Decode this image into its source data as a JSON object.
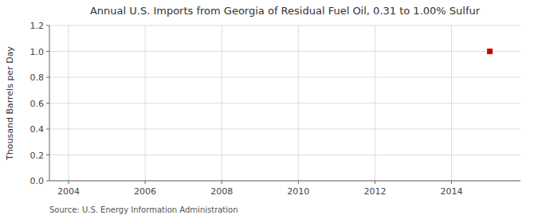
{
  "chart_data": {
    "type": "scatter",
    "title": "Annual U.S. Imports from Georgia of Residual Fuel Oil, 0.31 to 1.00% Sulfur",
    "ylabel": "Thousand Barrels per Day",
    "source": "Source: U.S. Energy Information Administration",
    "x": [
      2015
    ],
    "values": [
      1.0
    ],
    "color": "#cc0000",
    "marker": "square",
    "xlim": [
      2003.5,
      2015.8
    ],
    "ylim": [
      0.0,
      1.2
    ],
    "xticks": [
      2004,
      2006,
      2008,
      2010,
      2012,
      2014
    ],
    "yticks": [
      {
        "value": 0,
        "label": "0.0"
      },
      0.2,
      0.4,
      0.6,
      0.8,
      {
        "value": 1,
        "label": "1.0"
      },
      1.2
    ],
    "grid": true
  }
}
